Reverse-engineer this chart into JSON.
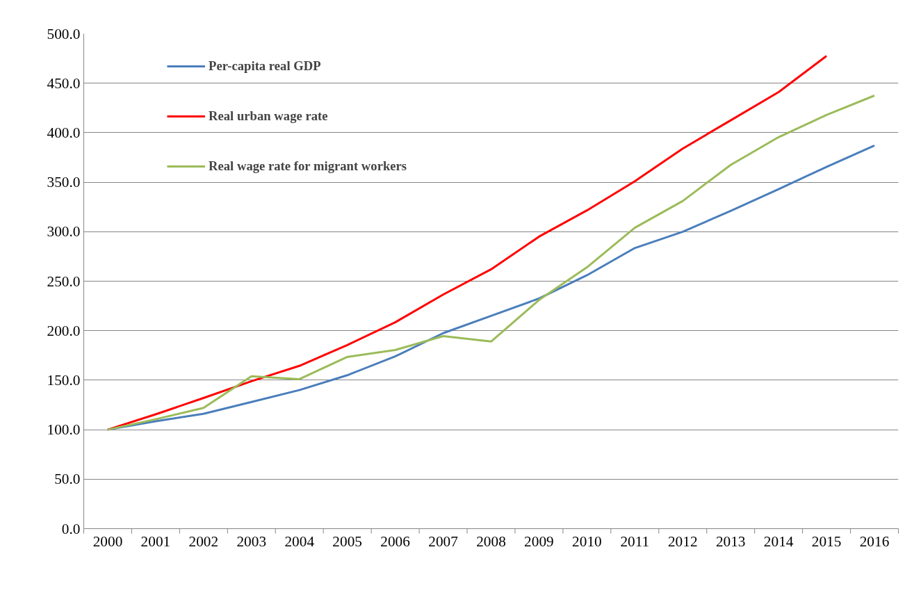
{
  "chart_data": {
    "type": "line",
    "categories": [
      "2000",
      "2001",
      "2002",
      "2003",
      "2004",
      "2005",
      "2006",
      "2007",
      "2008",
      "2009",
      "2010",
      "2011",
      "2012",
      "2013",
      "2014",
      "2015",
      "2016"
    ],
    "series": [
      {
        "name": "Per-capita real GDP",
        "color": "#4a7ebb",
        "values": [
          100,
          108.5,
          116,
          128,
          140,
          155,
          174,
          197.5,
          215,
          232.5,
          256,
          283.5,
          300,
          321,
          343,
          365.5,
          387
        ]
      },
      {
        "name": "Real urban wage rate",
        "color": "#ff0000",
        "values": [
          100,
          115.5,
          132,
          149,
          164.5,
          185.5,
          208.5,
          236.5,
          262,
          295,
          321.5,
          351,
          384,
          412.5,
          441,
          477.5,
          null
        ]
      },
      {
        "name": "Real wage rate for migrant workers",
        "color": "#9bbb59",
        "values": [
          100,
          110.5,
          122,
          154,
          151,
          173.5,
          180.5,
          194.5,
          189,
          231,
          264,
          304,
          331,
          367.5,
          395.5,
          418,
          437.5
        ]
      }
    ],
    "ylim": [
      0,
      500
    ],
    "yticks": [
      {
        "value": 0,
        "label": "0.0"
      },
      {
        "value": 50,
        "label": "50.0"
      },
      {
        "value": 100,
        "label": "100.0"
      },
      {
        "value": 150,
        "label": "150.0"
      },
      {
        "value": 200,
        "label": "200.0"
      },
      {
        "value": 250,
        "label": "250.0"
      },
      {
        "value": 300,
        "label": "300.0"
      },
      {
        "value": 350,
        "label": "350.0"
      },
      {
        "value": 400,
        "label": "400.0"
      },
      {
        "value": 450,
        "label": "450.0"
      },
      {
        "value": 500,
        "label": "500.0"
      }
    ],
    "grid": "y",
    "legend": "top left",
    "marker": "none",
    "line_style": "solid"
  }
}
